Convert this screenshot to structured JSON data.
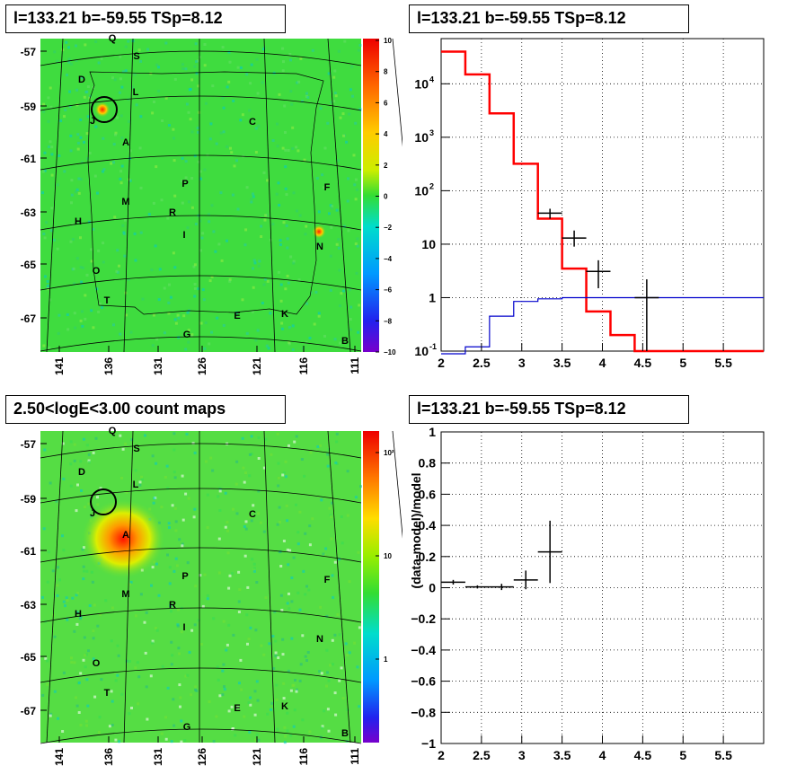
{
  "panels": {
    "tl_title": "l=133.21 b=-59.55 TSp=8.12",
    "tr_title": "l=133.21 b=-59.55 TSp=8.12",
    "bl_title": "2.50<logE<3.00 count maps",
    "br_title": "l=133.21 b=-59.55 TSp=8.12"
  },
  "colors": {
    "model": "#ff0000",
    "background": "#0000cc",
    "data": "#000000",
    "map_base": "#33dd33"
  },
  "chart_data": [
    {
      "type": "heatmap",
      "title": "l=133.21 b=-59.55 TSp=8.12",
      "y_ticks": [
        "-57",
        "-59",
        "-61",
        "-63",
        "-65",
        "-67"
      ],
      "x_ticks": [
        "141",
        "136",
        "131",
        "126",
        "121",
        "116",
        "111"
      ],
      "colorbar_ticks": [
        "10",
        "8",
        "6",
        "4",
        "2",
        "0",
        "−2",
        "−4",
        "−6",
        "−8",
        "−10"
      ],
      "colorbar_range": [
        -10,
        10
      ],
      "source_labels": [
        "Q",
        "S",
        "D",
        "L",
        "J",
        "C",
        "A",
        "P",
        "F",
        "M",
        "R",
        "H",
        "I",
        "N",
        "O",
        "T",
        "E",
        "K",
        "G",
        "B"
      ]
    },
    {
      "type": "line",
      "title": "l=133.21 b=-59.55 TSp=8.12",
      "yscale": "log",
      "xlim": [
        2,
        6
      ],
      "ylim": [
        0.1,
        70000
      ],
      "x_ticks": [
        "2",
        "2.5",
        "3",
        "3.5",
        "4",
        "4.5",
        "5",
        "5.5"
      ],
      "y_ticks": [
        "10^4",
        "10^3",
        "10^2",
        "10",
        "1",
        "10^-1"
      ],
      "grid": true,
      "series": [
        {
          "bin_edges": [
            2.0,
            2.3,
            2.6,
            2.9,
            3.2,
            3.5,
            3.8,
            4.1,
            4.4,
            6.0
          ],
          "values": [
            40000,
            15000,
            2800,
            320,
            30,
            3.5,
            0.55,
            0.2,
            0.1
          ]
        },
        {
          "bin_edges": [
            2.0,
            2.3,
            2.6,
            2.9,
            3.2,
            3.5,
            3.8,
            4.1,
            4.4,
            6.0
          ],
          "values": [
            0.08,
            0.12,
            0.45,
            0.85,
            0.95,
            1.0,
            1.0,
            1.0,
            1.0
          ]
        }
      ],
      "data_points": [
        {
          "x": 3.35,
          "y": 38,
          "xerr": 0.15,
          "ylo": 30,
          "yhi": 46
        },
        {
          "x": 3.65,
          "y": 13,
          "xerr": 0.15,
          "ylo": 9,
          "yhi": 18
        },
        {
          "x": 3.95,
          "y": 3.1,
          "xerr": 0.15,
          "ylo": 1.5,
          "yhi": 5
        },
        {
          "x": 4.55,
          "y": 1.0,
          "xerr": 0.15,
          "ylo": 0.1,
          "yhi": 2.2
        }
      ]
    },
    {
      "type": "heatmap",
      "title": "2.50<logE<3.00 count maps",
      "y_ticks": [
        "-57",
        "-59",
        "-61",
        "-63",
        "-65",
        "-67"
      ],
      "x_ticks": [
        "141",
        "136",
        "131",
        "126",
        "121",
        "116",
        "111"
      ],
      "colorbar_ticks": [
        "10²",
        "10",
        "1"
      ],
      "colorbar_scale": "log",
      "source_labels": [
        "Q",
        "S",
        "D",
        "L",
        "J",
        "C",
        "A",
        "P",
        "F",
        "M",
        "R",
        "H",
        "I",
        "N",
        "O",
        "T",
        "E",
        "K",
        "G",
        "B"
      ]
    },
    {
      "type": "scatter",
      "title": "l=133.21 b=-59.55 TSp=8.12",
      "ylabel": "(data-model)/model",
      "xlim": [
        2,
        6
      ],
      "ylim": [
        -1,
        1
      ],
      "x_ticks": [
        "2",
        "2.5",
        "3",
        "3.5",
        "4",
        "4.5",
        "5",
        "5.5"
      ],
      "y_ticks": [
        "1",
        "0.8",
        "0.6",
        "0.4",
        "0.2",
        "0",
        "−0.2",
        "−0.4",
        "−0.6",
        "−0.8",
        "−1"
      ],
      "grid": true,
      "data_points": [
        {
          "x": 2.15,
          "y": 0.035,
          "xerr": 0.15,
          "yerr": 0.015
        },
        {
          "x": 2.45,
          "y": 0.005,
          "xerr": 0.15,
          "yerr": 0.01
        },
        {
          "x": 2.75,
          "y": 0.005,
          "xerr": 0.15,
          "yerr": 0.02
        },
        {
          "x": 3.05,
          "y": 0.05,
          "xerr": 0.15,
          "yerr": 0.06
        },
        {
          "x": 3.35,
          "y": 0.23,
          "xerr": 0.15,
          "yerr": 0.2
        }
      ]
    }
  ]
}
